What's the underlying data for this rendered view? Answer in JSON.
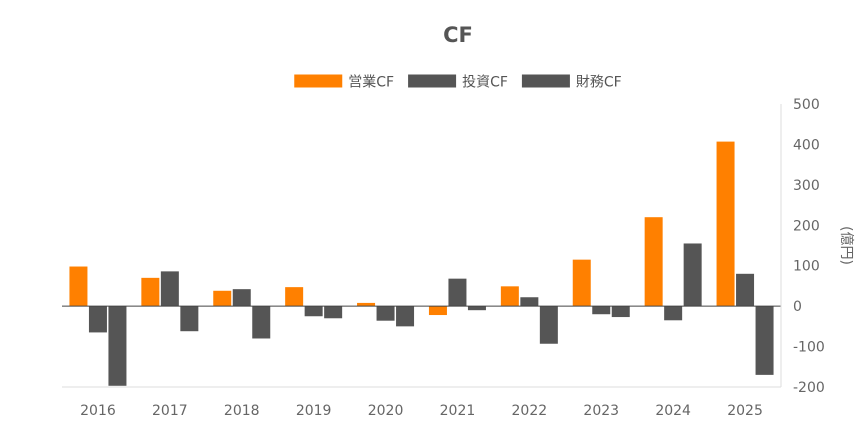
{
  "chart_data": {
    "type": "bar",
    "title": "CF",
    "categories": [
      "2016",
      "2017",
      "2018",
      "2019",
      "2020",
      "2021",
      "2022",
      "2023",
      "2024",
      "2025"
    ],
    "series": [
      {
        "name": "営業CF",
        "color": "#ff8000",
        "values": [
          98,
          70,
          38,
          47,
          8,
          -22,
          49,
          115,
          220,
          407
        ]
      },
      {
        "name": "投資CF",
        "color": "#555555",
        "values": [
          -65,
          86,
          42,
          -25,
          -36,
          68,
          22,
          -20,
          -35,
          80
        ]
      },
      {
        "name": "財務CF",
        "color": "#555555",
        "values": [
          -197,
          -62,
          -80,
          -30,
          -50,
          -10,
          -93,
          -27,
          155,
          -170
        ]
      }
    ],
    "ylabel": "(億円)",
    "ylim": [
      -200,
      500
    ],
    "yticks": [
      500,
      400,
      300,
      200,
      100,
      0,
      -100,
      -200
    ],
    "y_axis_side": "right",
    "legend_position": "top-center",
    "grid": false
  }
}
